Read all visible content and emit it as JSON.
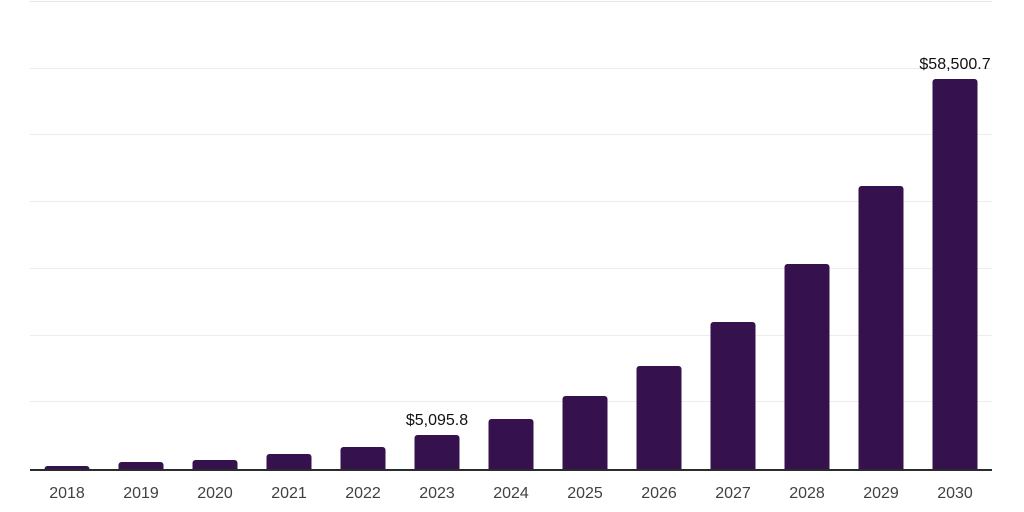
{
  "chart_data": {
    "type": "bar",
    "title": "",
    "xlabel": "",
    "ylabel": "",
    "categories": [
      "2018",
      "2019",
      "2020",
      "2021",
      "2022",
      "2023",
      "2024",
      "2025",
      "2026",
      "2027",
      "2028",
      "2029",
      "2030"
    ],
    "values": [
      500,
      1000,
      1350,
      2250,
      3250,
      5095.8,
      7500,
      10900,
      15500,
      22100,
      30800,
      42400,
      58500.7
    ],
    "ylim": [
      0,
      70000
    ],
    "gridline_interval": 10000,
    "grid": true,
    "legend": false,
    "bar_color": "#35124d",
    "axis_color": "#2b2b2b",
    "gridline_color": "#ececec",
    "data_labels": [
      {
        "category": "2023",
        "text": "$5,095.8"
      },
      {
        "category": "2030",
        "text": "$58,500.7"
      }
    ]
  }
}
